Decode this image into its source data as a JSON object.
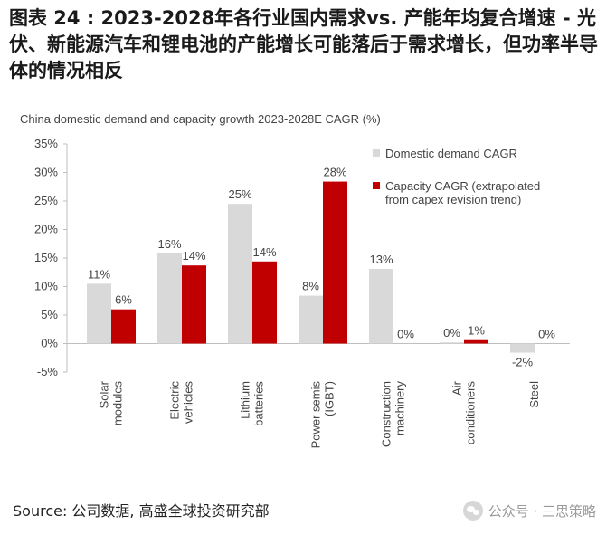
{
  "figure": {
    "title": "图表 24 : 2023-2028年各行业国内需求vs. 产能年均复合增速 - 光伏、新能源汽车和锂电池的产能增长可能落后于需求增长，但功率半导体的情况相反",
    "source": "Source: 公司数据, 高盛全球投资研究部",
    "watermark": "公众号 · 三思策略"
  },
  "chart_data": {
    "type": "bar",
    "title": "China domestic demand and capacity growth 2023-2028E CAGR (%)",
    "categories": [
      [
        "Solar",
        "modules"
      ],
      [
        "Electric",
        "vehicles"
      ],
      [
        "Lithium",
        "batteries"
      ],
      [
        "Power semis",
        "(IGBT)"
      ],
      [
        "Construction",
        "machinery"
      ],
      [
        "Air",
        "conditioners"
      ],
      [
        "Steel"
      ]
    ],
    "series": [
      {
        "name": "Domestic demand CAGR",
        "color": "#d9d9d9",
        "values": [
          10.5,
          15.8,
          24.5,
          8.4,
          13.1,
          0.2,
          -1.6
        ],
        "labels": [
          "11%",
          "16%",
          "25%",
          "8%",
          "13%",
          "0%",
          "-2%"
        ]
      },
      {
        "name": "Capacity CAGR (extrapolated from capex revision trend)",
        "color": "#c00000",
        "values": [
          6.0,
          13.7,
          14.4,
          28.4,
          0.0,
          0.6,
          0.0
        ],
        "labels": [
          "6%",
          "14%",
          "14%",
          "28%",
          "0%",
          "1%",
          "0%"
        ]
      }
    ],
    "legend_lines": [
      [
        "Domestic demand CAGR"
      ],
      [
        "Capacity CAGR (extrapolated",
        "from capex revision trend)"
      ]
    ],
    "ylim": [
      -5,
      35
    ],
    "yticks": [
      -5,
      0,
      5,
      10,
      15,
      20,
      25,
      30,
      35
    ],
    "ytick_labels": [
      "-5%",
      "0%",
      "5%",
      "10%",
      "15%",
      "20%",
      "25%",
      "30%",
      "35%"
    ],
    "grid": false,
    "legend_position": "top-right"
  }
}
